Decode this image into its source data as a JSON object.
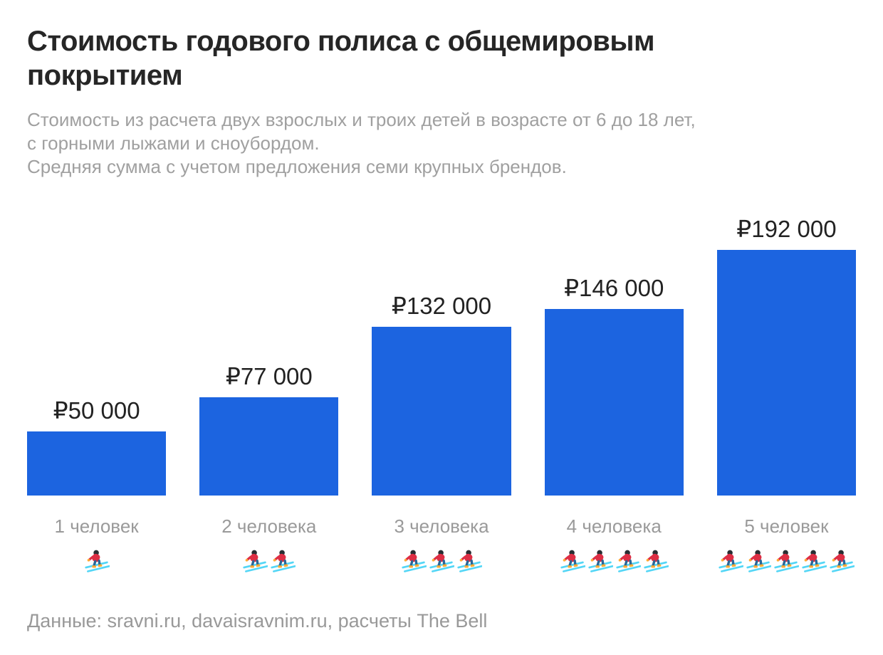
{
  "header": {
    "title": "Стоимость годового полиса с общемировым покрытием",
    "subtitle_lines": [
      "Стоимость из расчета двух взрослых и троих детей в возрасте от 6 до 18 лет,",
      "с горными лыжами и сноубордом.",
      "Средняя сумма с учетом предложения семи крупных брендов."
    ]
  },
  "chart_data": {
    "type": "bar",
    "title": "Стоимость годового полиса с общемировым покрытием",
    "categories": [
      "1 человек",
      "2 человека",
      "3 человека",
      "4 человека",
      "5 человек"
    ],
    "values": [
      50000,
      77000,
      132000,
      146000,
      192000
    ],
    "value_labels": [
      "₽50 000",
      "₽77 000",
      "₽132 000",
      "₽146 000",
      "₽192 000"
    ],
    "skier_icon_counts": [
      1,
      2,
      3,
      4,
      5
    ],
    "currency": "₽",
    "xlabel": "",
    "ylabel": "",
    "ylim": [
      0,
      192000
    ],
    "grid": false,
    "legend": "none",
    "bar_color": "#1c64e0"
  },
  "footer": {
    "source": "Данные: sravni.ru, davaisravnim.ru, расчеты The Bell"
  },
  "colors": {
    "bar": "#1c64e0",
    "title": "#262626",
    "muted_text": "#9a9a9a",
    "value_label": "#222222",
    "ski": "#53d6f6",
    "jacket": "#dd2e44",
    "pants": "#2a6797",
    "boots": "#ffac33",
    "helmet": "#292f33"
  },
  "icons": {
    "skier": "skier-icon"
  }
}
